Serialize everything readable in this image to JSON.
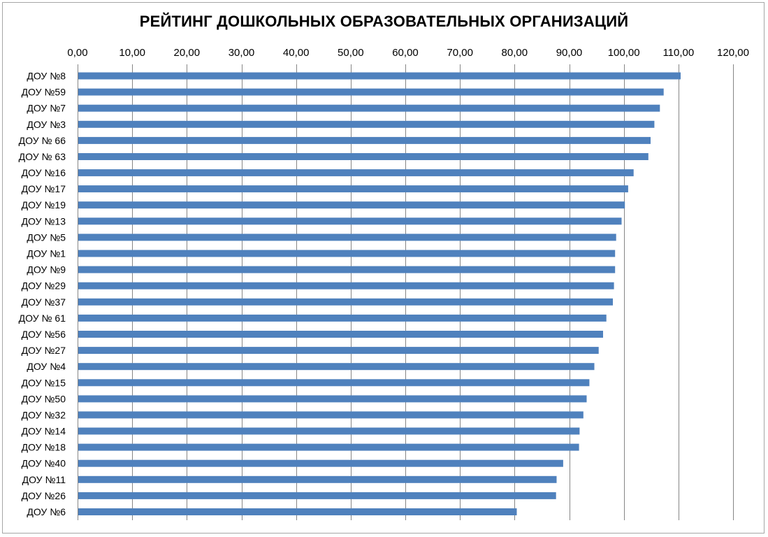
{
  "chart_data": {
    "type": "bar",
    "orientation": "horizontal",
    "title": "РЕЙТИНГ ДОШКОЛЬНЫХ ОБРАЗОВАТЕЛЬНЫХ ОРГАНИЗАЦИЙ",
    "xlabel": "",
    "ylabel": "",
    "xlim": [
      0,
      120
    ],
    "x_ticks": [
      "0,00",
      "10,00",
      "20,00",
      "30,00",
      "40,00",
      "50,00",
      "60,00",
      "70,00",
      "80,00",
      "90,00",
      "100,00",
      "110,00",
      "120,00"
    ],
    "x_axis_position": "top",
    "grid": true,
    "legend": "none",
    "bar_color": "#4f81bd",
    "categories": [
      "ДОУ №8",
      "ДОУ №59",
      "ДОУ №7",
      "ДОУ №3",
      "ДОУ № 66",
      "ДОУ № 63",
      "ДОУ №16",
      "ДОУ №17",
      "ДОУ №19",
      "ДОУ №13",
      "ДОУ №5",
      "ДОУ №1",
      "ДОУ №9",
      "ДОУ №29",
      "ДОУ №37",
      "ДОУ № 61",
      "ДОУ №56",
      "ДОУ №27",
      "ДОУ №4",
      "ДОУ №15",
      "ДОУ №50",
      "ДОУ №32",
      "ДОУ №14",
      "ДОУ №18",
      "ДОУ №40",
      "ДОУ №11",
      "ДОУ №26",
      "ДОУ №6"
    ],
    "values": [
      110.4,
      107.3,
      106.6,
      105.6,
      104.9,
      104.5,
      101.8,
      100.8,
      100.2,
      99.6,
      98.6,
      98.4,
      98.4,
      98.2,
      98.0,
      96.8,
      96.2,
      95.4,
      94.6,
      93.7,
      93.2,
      92.6,
      91.9,
      91.8,
      88.9,
      87.7,
      87.6,
      80.4
    ]
  }
}
